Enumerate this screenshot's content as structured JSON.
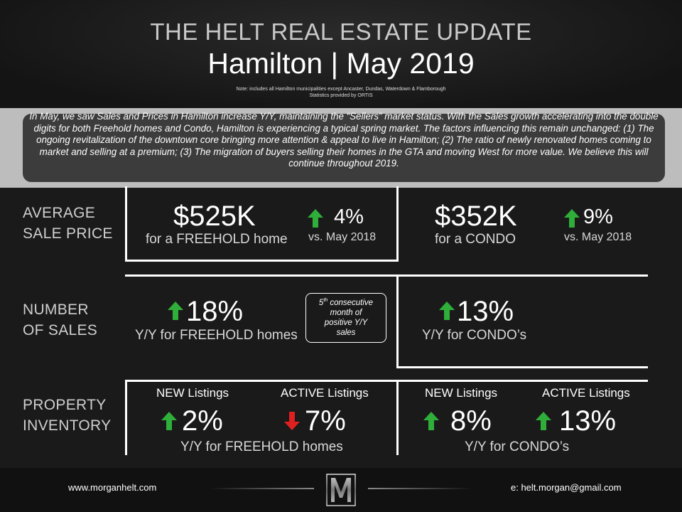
{
  "header": {
    "title": "THE HELT REAL ESTATE UPDATE",
    "subtitle": "Hamilton | May 2019",
    "note_line1": "Note: includes all Hamilton municipalities except Ancaster, Dundas, Waterdown & Flamborough",
    "note_line2": "Statistics provided by ORTIS"
  },
  "summary": "In May, we saw Sales and Prices in Hamilton increase Y/Y, maintaining the “Sellers” market status. With the Sales growth accelerating into the double digits for both Freehold homes and Condo, Hamilton is experiencing a typical spring market. The factors influencing this remain unchanged: (1) The ongoing revitalization of the downtown core bringing more attention & appeal to live in Hamilton; (2) The ratio of newly renovated homes coming to market and selling at a premium; (3) The migration of buyers selling their homes in the GTA and moving West for more value. We believe this will continue throughout 2019.",
  "avg_price": {
    "label_line1": "AVERAGE",
    "label_line2": "SALE PRICE",
    "freehold": {
      "value": "$525K",
      "desc": "for a FREEHOLD home",
      "change": "4%",
      "vs": "vs. May 2018"
    },
    "condo": {
      "value": "$352K",
      "desc": "for a CONDO",
      "change": "9%",
      "vs": "vs. May 2018"
    }
  },
  "sales": {
    "label_line1": "NUMBER",
    "label_line2": "OF SALES",
    "freehold": {
      "change": "18%",
      "desc": "Y/Y for FREEHOLD homes"
    },
    "condo": {
      "change": "13%",
      "desc": "Y/Y for CONDO’s"
    },
    "callout": {
      "num": "5",
      "sup": "th",
      "line1_rest": " consecutive",
      "line2": "month of",
      "line3": "positive Y/Y",
      "line4": "sales"
    }
  },
  "inventory": {
    "label_line1": "PROPERTY",
    "label_line2": "INVENTORY",
    "freehold": {
      "new_label": "NEW Listings",
      "new_change": "2%",
      "active_label": "ACTIVE Listings",
      "active_change": "7%",
      "desc": "Y/Y for FREEHOLD homes"
    },
    "condo": {
      "new_label": "NEW Listings",
      "new_change": "8%",
      "active_label": "ACTIVE Listings",
      "active_change": "13%",
      "desc": "Y/Y for CONDO’s"
    }
  },
  "footer": {
    "website": "www.morganhelt.com",
    "email": "e: helt.morgan@gmail.com",
    "logo_letter": "M"
  },
  "colors": {
    "up_arrow": "#2fae3a",
    "down_arrow": "#e02020",
    "summary_strip": "#bdbdbd",
    "summary_box": "#3c3c3c"
  }
}
